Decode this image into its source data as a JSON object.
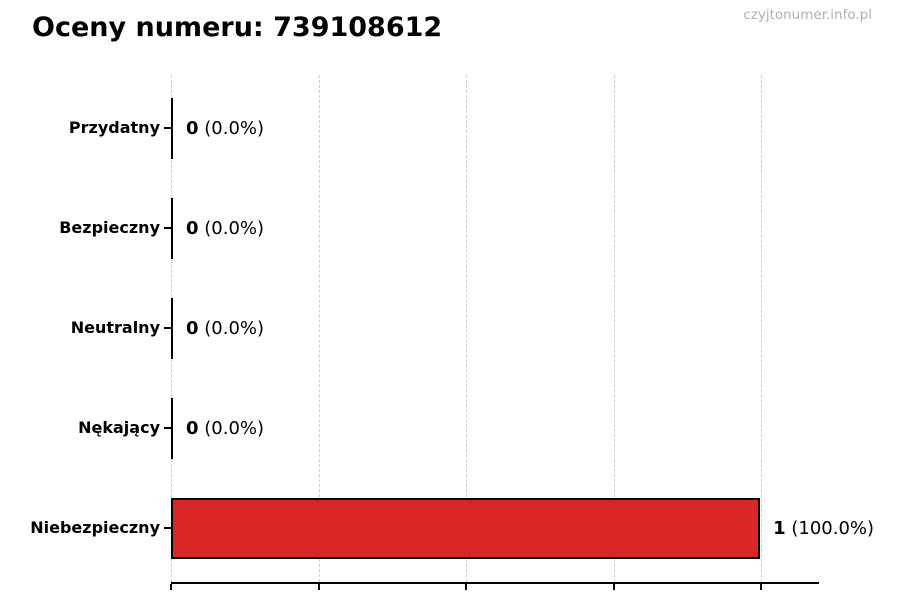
{
  "page": {
    "watermark": "czyjtonumer.info.pl"
  },
  "chart_data": {
    "type": "bar",
    "orientation": "horizontal",
    "title": "Oceny numeru: 739108612",
    "categories": [
      "Przydatny",
      "Bezpieczny",
      "Neutralny",
      "Nękający",
      "Niebezpieczny"
    ],
    "values": [
      0,
      0,
      0,
      0,
      1
    ],
    "value_labels": [
      {
        "count": "0",
        "percent": "(0.0%)"
      },
      {
        "count": "0",
        "percent": "(0.0%)"
      },
      {
        "count": "0",
        "percent": "(0.0%)"
      },
      {
        "count": "0",
        "percent": "(0.0%)"
      },
      {
        "count": "1",
        "percent": "(100.0%)"
      }
    ],
    "xlim": [
      0,
      1.1
    ],
    "xticks": [
      0,
      0.25,
      0.5,
      0.75,
      1.0
    ],
    "xtick_labels_visible": false,
    "grid": "dashed-vertical",
    "legend": "none",
    "bar_color": "#d92727",
    "bar_edge_color": "#000000",
    "gridline_color": "#cccccc",
    "axis_color": "#000000",
    "watermark_color": "#b0b0b0"
  }
}
